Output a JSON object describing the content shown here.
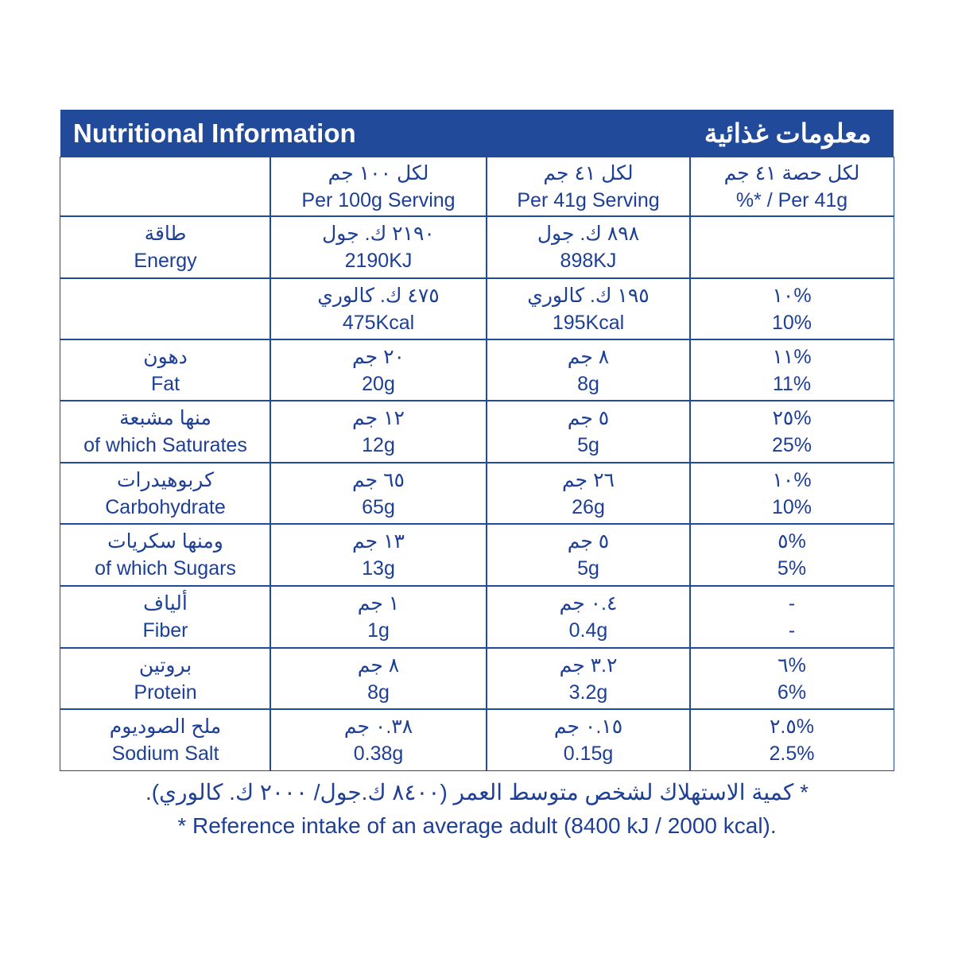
{
  "header": {
    "title_en": "Nutritional Information",
    "title_ar": "معلومات غذائية"
  },
  "table": {
    "rows": [
      [
        [],
        [
          "لكل ١٠٠ جم",
          "Per 100g Serving"
        ],
        [
          "لكل ٤١ جم",
          "Per 41g Serving"
        ],
        [
          "لكل حصة ٤١ جم",
          "%* / Per 41g"
        ]
      ],
      [
        [
          "طاقة",
          "Energy"
        ],
        [
          "٢١٩٠ ك. جول",
          "2190KJ"
        ],
        [
          "٨٩٨ ك. جول",
          "898KJ"
        ],
        []
      ],
      [
        [],
        [
          "٤٧٥ ك. كالوري",
          "475Kcal"
        ],
        [
          "١٩٥ ك. كالوري",
          "195Kcal"
        ],
        [
          "١٠%",
          "10%"
        ]
      ],
      [
        [
          "دهون",
          "Fat"
        ],
        [
          "٢٠ جم",
          "20g"
        ],
        [
          "٨ جم",
          "8g"
        ],
        [
          "١١%",
          "11%"
        ]
      ],
      [
        [
          "منها مشبعة",
          "of which Saturates"
        ],
        [
          "١٢ جم",
          "12g"
        ],
        [
          "٥ جم",
          "5g"
        ],
        [
          "٢٥%",
          "25%"
        ]
      ],
      [
        [
          "كربوهيدرات",
          "Carbohydrate"
        ],
        [
          "٦٥ جم",
          "65g"
        ],
        [
          "٢٦ جم",
          "26g"
        ],
        [
          "١٠%",
          "10%"
        ]
      ],
      [
        [
          "ومنها سكريات",
          "of which Sugars"
        ],
        [
          "١٣ جم",
          "13g"
        ],
        [
          "٥ جم",
          "5g"
        ],
        [
          "٥%",
          "5%"
        ]
      ],
      [
        [
          "ألياف",
          "Fiber"
        ],
        [
          "١ جم",
          "1g"
        ],
        [
          "٠.٤ جم",
          "0.4g"
        ],
        [
          "-",
          "-"
        ]
      ],
      [
        [
          "بروتين",
          "Protein"
        ],
        [
          "٨ جم",
          "8g"
        ],
        [
          "٣.٢ جم",
          "3.2g"
        ],
        [
          "٦%",
          "6%"
        ]
      ],
      [
        [
          "ملح الصوديوم",
          "Sodium Salt"
        ],
        [
          "٠.٣٨ جم",
          "0.38g"
        ],
        [
          "٠.١٥ جم",
          "0.15g"
        ],
        [
          "٢.٥%",
          "2.5%"
        ]
      ]
    ]
  },
  "footnotes": [
    "* كمية الاستهلاك لشخص متوسط العمر (٨٤٠٠ ك.جول/ ٢٠٠٠ ك. كالوري).",
    "* Reference intake of an average adult (8400 kJ / 2000 kcal)."
  ]
}
